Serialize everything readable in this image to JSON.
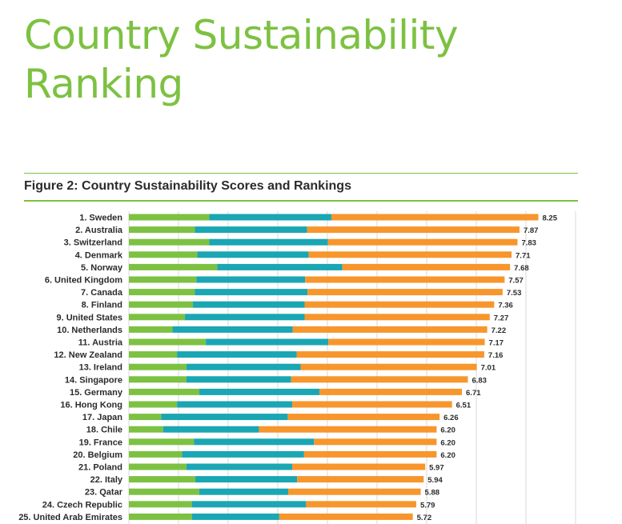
{
  "page": {
    "title_line1": "Country Sustainability",
    "title_line2": "Ranking",
    "figure_title": "Figure 2: Country Sustainability Scores and Rankings"
  },
  "colors": {
    "title_green": "#7dc142",
    "segment_1": "#7dc142",
    "segment_2": "#1aa6b3",
    "segment_3": "#f7962c",
    "gridline": "#d9d9d9"
  },
  "chart_data": {
    "type": "bar",
    "orientation": "horizontal",
    "stacked": true,
    "title": "Figure 2: Country Sustainability Scores and Rankings",
    "xlim": [
      0,
      10
    ],
    "grid": true,
    "legend": "none",
    "categories": [
      "1. Sweden",
      "2. Australia",
      "3. Switzerland",
      "4. Denmark",
      "5. Norway",
      "6. United Kingdom",
      "7. Canada",
      "8. Finland",
      "9. United States",
      "10. Netherlands",
      "11. Austria",
      "12. New Zealand",
      "13. Ireland",
      "14. Singapore",
      "15. Germany",
      "16. Hong Kong",
      "17. Japan",
      "18. Chile",
      "19. France",
      "20. Belgium",
      "21. Poland",
      "22. Italy",
      "23. Qatar",
      "24. Czech Republic",
      "25. United Arab Emirates"
    ],
    "series": [
      {
        "values": [
          1.62,
          1.33,
          1.62,
          1.38,
          1.78,
          1.36,
          1.33,
          1.29,
          1.13,
          0.88,
          1.55,
          0.97,
          1.16,
          1.16,
          1.42,
          0.97,
          0.65,
          0.69,
          1.31,
          1.07,
          1.16,
          1.34,
          1.42,
          1.27,
          1.27
        ]
      },
      {
        "values": [
          2.46,
          2.26,
          2.39,
          2.24,
          2.52,
          2.19,
          2.27,
          2.25,
          2.41,
          2.42,
          2.47,
          2.41,
          2.3,
          2.11,
          2.42,
          2.32,
          2.55,
          1.93,
          2.42,
          2.46,
          2.13,
          2.05,
          1.79,
          2.3,
          1.76
        ]
      },
      {
        "values": [
          4.17,
          4.28,
          3.82,
          4.09,
          3.38,
          4.02,
          3.93,
          3.82,
          3.73,
          3.92,
          3.15,
          3.78,
          3.55,
          3.56,
          2.87,
          3.22,
          3.06,
          3.58,
          2.47,
          2.67,
          2.68,
          2.55,
          2.67,
          2.22,
          2.69
        ]
      }
    ],
    "totals": [
      "8.25",
      "7.87",
      "7.83",
      "7.71",
      "7.68",
      "7.57",
      "7.53",
      "7.36",
      "7.27",
      "7.22",
      "7.17",
      "7.16",
      "7.01",
      "6.83",
      "6.71",
      "6.51",
      "6.26",
      "6.20",
      "6.20",
      "6.20",
      "5.97",
      "5.94",
      "5.88",
      "5.79",
      "5.72"
    ]
  }
}
